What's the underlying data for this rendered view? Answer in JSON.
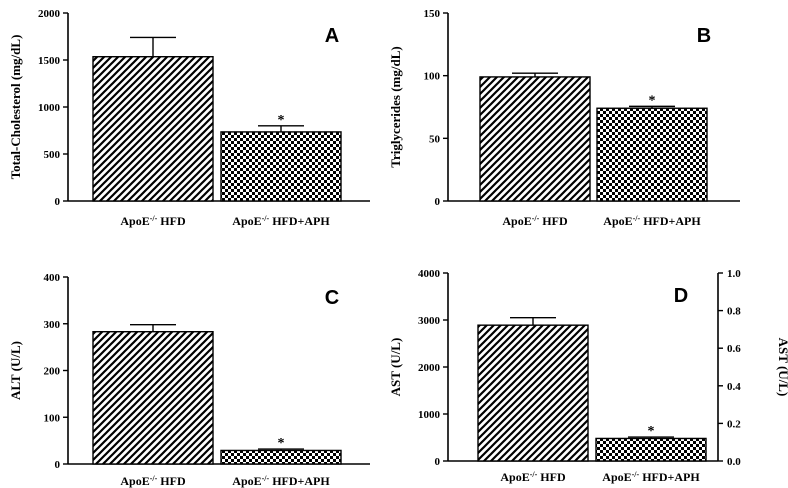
{
  "colors": {
    "ink": "#000000",
    "background": "#ffffff"
  },
  "fill_patterns": [
    "diagonal-hatch",
    "checkerboard"
  ],
  "chart_data": [
    {
      "panel": "A",
      "type": "bar",
      "ylabel": "Total-Cholesterol (mg/dL)",
      "ylim": [
        0,
        2000
      ],
      "yticks": [
        0,
        500,
        1000,
        1500,
        2000
      ],
      "categories": [
        {
          "prefix": "ApoE",
          "sup": "-/-",
          "suffix": " HFD"
        },
        {
          "prefix": "ApoE",
          "sup": "-/-",
          "suffix": " HFD+APH"
        }
      ],
      "values": [
        1535,
        735
      ],
      "errors": [
        205,
        65
      ],
      "significance": [
        "",
        "*"
      ]
    },
    {
      "panel": "B",
      "type": "bar",
      "ylabel": "Triglycerides (mg/dL)",
      "ylim": [
        0,
        150
      ],
      "yticks": [
        0,
        50,
        100,
        150
      ],
      "categories": [
        {
          "prefix": "ApoE",
          "sup": "-/-",
          "suffix": " HFD"
        },
        {
          "prefix": "ApoE",
          "sup": "-/-",
          "suffix": " HFD+APH"
        }
      ],
      "values": [
        99,
        74
      ],
      "errors": [
        3,
        1.5
      ],
      "significance": [
        "",
        "*"
      ]
    },
    {
      "panel": "C",
      "type": "bar",
      "ylabel": "ALT (U/L)",
      "ylim": [
        0,
        400
      ],
      "yticks": [
        0,
        100,
        200,
        300,
        400
      ],
      "categories": [
        {
          "prefix": "ApoE",
          "sup": "-/-",
          "suffix": " HFD"
        },
        {
          "prefix": "ApoE",
          "sup": "-/-",
          "suffix": " HFD+APH"
        }
      ],
      "values": [
        283,
        29
      ],
      "errors": [
        15,
        3
      ],
      "significance": [
        "",
        "*"
      ]
    },
    {
      "panel": "D",
      "type": "bar",
      "ylabel": "AST (U/L)",
      "ylabel_right": "AST (U/L)",
      "ylim": [
        0,
        4000
      ],
      "yticks": [
        0,
        1000,
        2000,
        3000,
        4000
      ],
      "ylim_right": [
        0,
        1.0
      ],
      "yticks_right": [
        "0.0",
        "0.2",
        "0.4",
        "0.6",
        "0.8",
        "1.0"
      ],
      "categories": [
        {
          "prefix": "ApoE",
          "sup": "-/-",
          "suffix": " HFD"
        },
        {
          "prefix": "ApoE",
          "sup": "-/-",
          "suffix": " HFD+APH"
        }
      ],
      "values": [
        2890,
        480
      ],
      "errors": [
        160,
        30
      ],
      "significance": [
        "",
        "*"
      ]
    }
  ]
}
